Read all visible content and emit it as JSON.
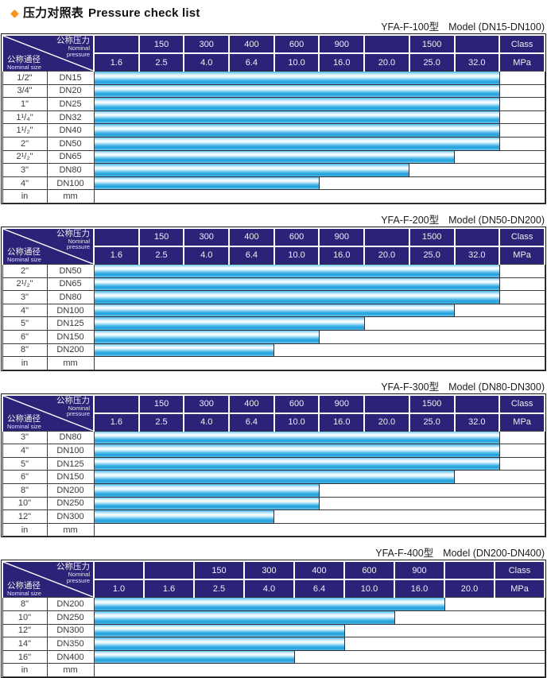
{
  "page": {
    "diamond_icon": "◆",
    "title_zh": "压力对照表",
    "title_en": "Pressure check list",
    "accent_orange": "#f7941d",
    "header_navy": "#2a2377",
    "bar_cyan": "#29a8e0"
  },
  "header_labels": {
    "pressure_zh": "公称压力",
    "pressure_en_1": "Nominal",
    "pressure_en_2": "pressure",
    "size_zh": "公称通径",
    "size_en": "Nominal size",
    "class_label": "Class",
    "mpa_label": "MPa",
    "in_label": "in",
    "mm_label": "mm"
  },
  "tables": [
    {
      "model": "YFA-F-100型",
      "model_range": "Model (DN15-DN100)",
      "class_row": [
        "",
        "150",
        "300",
        "400",
        "600",
        "900",
        "",
        "1500",
        ""
      ],
      "mpa_row": [
        "1.6",
        "2.5",
        "4.0",
        "6.4",
        "10.0",
        "16.0",
        "20.0",
        "25.0",
        "32.0"
      ],
      "rows": [
        {
          "size": "1/2\"",
          "dn": "DN15",
          "bar_span": 9
        },
        {
          "size": "3/4\"",
          "dn": "DN20",
          "bar_span": 9
        },
        {
          "size": "1\"",
          "dn": "DN25",
          "bar_span": 9
        },
        {
          "size": "1¹/₄\"",
          "dn": "DN32",
          "bar_span": 9
        },
        {
          "size": "1¹/₂\"",
          "dn": "DN40",
          "bar_span": 9
        },
        {
          "size": "2\"",
          "dn": "DN50",
          "bar_span": 9
        },
        {
          "size": "2¹/₂\"",
          "dn": "DN65",
          "bar_span": 8
        },
        {
          "size": "3\"",
          "dn": "DN80",
          "bar_span": 7
        },
        {
          "size": "4\"",
          "dn": "DN100",
          "bar_span": 5
        }
      ]
    },
    {
      "model": "YFA-F-200型",
      "model_range": "Model (DN50-DN200)",
      "class_row": [
        "",
        "150",
        "300",
        "400",
        "600",
        "900",
        "",
        "1500",
        ""
      ],
      "mpa_row": [
        "1.6",
        "2.5",
        "4.0",
        "6.4",
        "10.0",
        "16.0",
        "20.0",
        "25.0",
        "32.0"
      ],
      "rows": [
        {
          "size": "2\"",
          "dn": "DN50",
          "bar_span": 9
        },
        {
          "size": "2¹/₂\"",
          "dn": "DN65",
          "bar_span": 9
        },
        {
          "size": "3\"",
          "dn": "DN80",
          "bar_span": 9
        },
        {
          "size": "4\"",
          "dn": "DN100",
          "bar_span": 8
        },
        {
          "size": "5\"",
          "dn": "DN125",
          "bar_span": 6
        },
        {
          "size": "6\"",
          "dn": "DN150",
          "bar_span": 5
        },
        {
          "size": "8\"",
          "dn": "DN200",
          "bar_span": 4
        }
      ]
    },
    {
      "model": "YFA-F-300型",
      "model_range": "Model (DN80-DN300)",
      "class_row": [
        "",
        "150",
        "300",
        "400",
        "600",
        "900",
        "",
        "1500",
        ""
      ],
      "mpa_row": [
        "1.6",
        "2.5",
        "4.0",
        "6.4",
        "10.0",
        "16.0",
        "20.0",
        "25.0",
        "32.0"
      ],
      "rows": [
        {
          "size": "3\"",
          "dn": "DN80",
          "bar_span": 9
        },
        {
          "size": "4\"",
          "dn": "DN100",
          "bar_span": 9
        },
        {
          "size": "5\"",
          "dn": "DN125",
          "bar_span": 9
        },
        {
          "size": "6\"",
          "dn": "DN150",
          "bar_span": 8
        },
        {
          "size": "8\"",
          "dn": "DN200",
          "bar_span": 5
        },
        {
          "size": "10\"",
          "dn": "DN250",
          "bar_span": 5
        },
        {
          "size": "12\"",
          "dn": "DN300",
          "bar_span": 4
        }
      ]
    },
    {
      "model": "YFA-F-400型",
      "model_range": "Model (DN200-DN400)",
      "class_row": [
        "",
        "",
        "150",
        "300",
        "400",
        "600",
        "900",
        ""
      ],
      "mpa_row": [
        "1.0",
        "1.6",
        "2.5",
        "4.0",
        "6.4",
        "10.0",
        "16.0",
        "20.0"
      ],
      "rows": [
        {
          "size": "8\"",
          "dn": "DN200",
          "bar_span": 7
        },
        {
          "size": "10\"",
          "dn": "DN250",
          "bar_span": 6
        },
        {
          "size": "12\"",
          "dn": "DN300",
          "bar_span": 5
        },
        {
          "size": "14\"",
          "dn": "DN350",
          "bar_span": 5
        },
        {
          "size": "16\"",
          "dn": "DN400",
          "bar_span": 4
        }
      ]
    }
  ]
}
